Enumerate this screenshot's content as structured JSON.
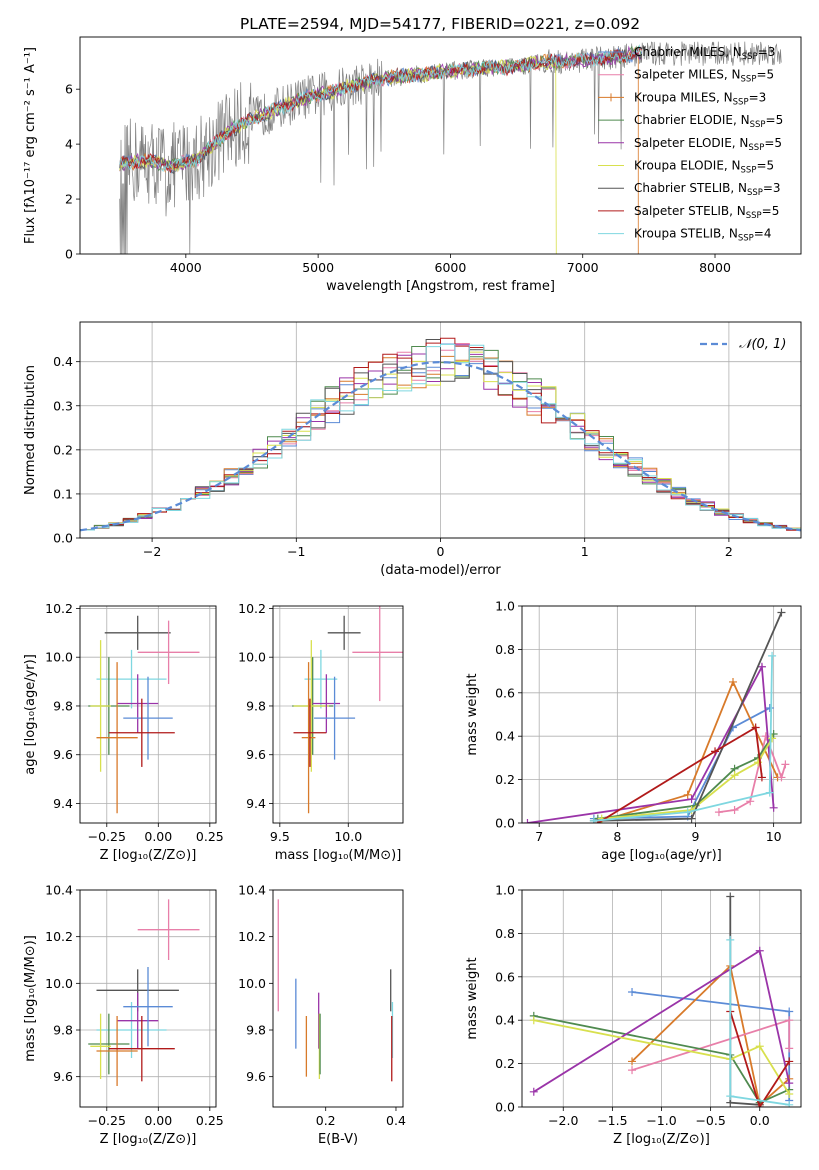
{
  "title": "PLATE=2594, MJD=54177, FIBERID=0221, z=0.092",
  "colors": {
    "chabrier_miles": "#5b8bd6",
    "salpeter_miles": "#e87fa9",
    "kroupa_miles": "#d87a2a",
    "chabrier_elodie": "#4f8a4f",
    "salpeter_elodie": "#9a34a8",
    "kroupa_elodie": "#d8e04e",
    "chabrier_stelib": "#555555",
    "salpeter_stelib": "#b11a1a",
    "kroupa_stelib": "#7fd7e0",
    "raw_spectrum": "#808080",
    "gaussian": "#5b8bd6",
    "grid": "#b0b0b0"
  },
  "chart_data": [
    {
      "id": "spectrum",
      "type": "line",
      "xlabel": "wavelength [Angstrom, rest frame]",
      "ylabel": "Flux [fλ10⁻¹⁷ erg cm⁻² s⁻¹ A⁻¹]",
      "xlim": [
        3200,
        8650
      ],
      "ylim": [
        0,
        7.9
      ],
      "xticks": [
        4000,
        5000,
        6000,
        7000,
        8000
      ],
      "yticks": [
        0,
        2,
        4,
        6
      ],
      "grid": false,
      "legend_loc": "top-right",
      "data_x": [
        3500,
        3700,
        3900,
        4100,
        4300,
        4500,
        4700,
        4900,
        5100,
        5300,
        5500,
        5700,
        5900,
        6100,
        6300,
        6500,
        6700,
        6900,
        7100,
        7300,
        7420
      ],
      "data_y": [
        3.3,
        3.4,
        3.2,
        3.5,
        4.4,
        4.9,
        5.3,
        5.7,
        5.9,
        6.2,
        6.4,
        6.5,
        6.6,
        6.7,
        6.8,
        6.8,
        7.0,
        7.0,
        7.1,
        7.2,
        7.3
      ],
      "series": [
        {
          "name": "Chabrier MILES, N_SSP=3",
          "label": "Chabrier MILES, N",
          "sub": "SSP",
          "suffix": "=3",
          "color_key": "chabrier_miles"
        },
        {
          "name": "Salpeter MILES, N_SSP=5",
          "label": "Salpeter MILES, N",
          "sub": "SSP",
          "suffix": "=5",
          "color_key": "salpeter_miles"
        },
        {
          "name": "Kroupa MILES, N_SSP=3",
          "label": "Kroupa MILES, N",
          "sub": "SSP",
          "suffix": "=3",
          "color_key": "kroupa_miles"
        },
        {
          "name": "Chabrier ELODIE, N_SSP=5",
          "label": "Chabrier ELODIE, N",
          "sub": "SSP",
          "suffix": "=5",
          "color_key": "chabrier_elodie"
        },
        {
          "name": "Salpeter ELODIE, N_SSP=5",
          "label": "Salpeter ELODIE, N",
          "sub": "SSP",
          "suffix": "=5",
          "color_key": "salpeter_elodie"
        },
        {
          "name": "Kroupa ELODIE, N_SSP=5",
          "label": "Kroupa ELODIE, N",
          "sub": "SSP",
          "suffix": "=5",
          "color_key": "kroupa_elodie"
        },
        {
          "name": "Chabrier STELIB, N_SSP=3",
          "label": "Chabrier STELIB, N",
          "sub": "SSP",
          "suffix": "=3",
          "color_key": "chabrier_stelib"
        },
        {
          "name": "Salpeter STELIB, N_SSP=5",
          "label": "Salpeter STELIB, N",
          "sub": "SSP",
          "suffix": "=5",
          "color_key": "salpeter_stelib"
        },
        {
          "name": "Kroupa STELIB, N_SSP=4",
          "label": "Kroupa STELIB, N",
          "sub": "SSP",
          "suffix": "=4",
          "color_key": "kroupa_stelib"
        }
      ]
    },
    {
      "id": "residuals",
      "type": "histogram",
      "xlabel": "(data-model)/error",
      "ylabel": "Normed distribution",
      "xlim": [
        -2.5,
        2.5
      ],
      "ylim": [
        0,
        0.49
      ],
      "xticks": [
        -2,
        -1,
        0,
        1,
        2
      ],
      "xtick_labels": [
        "−2",
        "−1",
        "0",
        "1",
        "2"
      ],
      "yticks": [
        0,
        0.1,
        0.2,
        0.3,
        0.4
      ],
      "ytick_labels": [
        "0.0",
        "0.1",
        "0.2",
        "0.3",
        "0.4"
      ],
      "grid": true,
      "legend_loc": "top-right",
      "gaussian_label": "𝒩(0, 1)",
      "bin_width": 0.1
    },
    {
      "id": "age_vs_Z",
      "type": "scatter",
      "xlabel": "Z [log₁₀(Z/Z⊙)]",
      "ylabel": "age  [log₁₀(age/yr)]",
      "xlim": [
        -0.38,
        0.28
      ],
      "ylim": [
        9.32,
        10.21
      ],
      "xticks": [
        -0.25,
        0.0,
        0.25
      ],
      "xtick_labels": [
        "−0.25",
        "0.00",
        "0.25"
      ],
      "yticks": [
        9.4,
        9.6,
        9.8,
        10.0,
        10.2
      ],
      "ytick_labels": [
        "9.4",
        "9.6",
        "9.8",
        "10.0",
        "10.2"
      ],
      "grid": true,
      "points": [
        {
          "color_key": "chabrier_stelib",
          "x": -0.1,
          "y": 10.1,
          "xerr": 0.16,
          "yerr": 0.07
        },
        {
          "color_key": "salpeter_miles",
          "x": 0.05,
          "y": 10.02,
          "xerr": 0.15,
          "yerr": 0.13
        },
        {
          "color_key": "kroupa_stelib",
          "x": -0.13,
          "y": 9.91,
          "xerr": 0.17,
          "yerr": 0.12
        },
        {
          "color_key": "chabrier_elodie",
          "x": -0.24,
          "y": 9.8,
          "xerr": 0.1,
          "yerr": 0.2
        },
        {
          "color_key": "kroupa_elodie",
          "x": -0.28,
          "y": 9.8,
          "xerr": 0.05,
          "yerr": 0.27
        },
        {
          "color_key": "salpeter_elodie",
          "x": -0.1,
          "y": 9.81,
          "xerr": 0.1,
          "yerr": 0.12
        },
        {
          "color_key": "chabrier_miles",
          "x": -0.05,
          "y": 9.75,
          "xerr": 0.12,
          "yerr": 0.17
        },
        {
          "color_key": "kroupa_miles",
          "x": -0.2,
          "y": 9.67,
          "xerr": 0.1,
          "yerr": 0.31
        },
        {
          "color_key": "salpeter_stelib",
          "x": -0.08,
          "y": 9.69,
          "xerr": 0.16,
          "yerr": 0.14
        }
      ]
    },
    {
      "id": "age_vs_mass",
      "type": "scatter",
      "xlabel": "mass [log₁₀(M/M⊙)]",
      "ylabel": "",
      "xlim": [
        9.45,
        10.4
      ],
      "ylim": [
        9.32,
        10.21
      ],
      "xticks": [
        9.5,
        10.0
      ],
      "xtick_labels": [
        "9.5",
        "10.0"
      ],
      "yticks": [
        9.4,
        9.6,
        9.8,
        10.0,
        10.2
      ],
      "ytick_labels": [
        "9.4",
        "9.6",
        "9.8",
        "10.0",
        "10.2"
      ],
      "grid": true,
      "points": [
        {
          "color_key": "chabrier_stelib",
          "x": 9.97,
          "y": 10.1,
          "xerr": 0.12,
          "yerr": 0.07
        },
        {
          "color_key": "salpeter_miles",
          "x": 10.23,
          "y": 10.02,
          "xerr": 0.2,
          "yerr": 0.2
        },
        {
          "color_key": "kroupa_stelib",
          "x": 9.8,
          "y": 9.91,
          "xerr": 0.12,
          "yerr": 0.12
        },
        {
          "color_key": "chabrier_elodie",
          "x": 9.74,
          "y": 9.8,
          "xerr": 0.15,
          "yerr": 0.2
        },
        {
          "color_key": "kroupa_elodie",
          "x": 9.73,
          "y": 9.8,
          "xerr": 0.13,
          "yerr": 0.27
        },
        {
          "color_key": "salpeter_elodie",
          "x": 9.84,
          "y": 9.81,
          "xerr": 0.1,
          "yerr": 0.12
        },
        {
          "color_key": "chabrier_miles",
          "x": 9.9,
          "y": 9.75,
          "xerr": 0.15,
          "yerr": 0.17
        },
        {
          "color_key": "kroupa_miles",
          "x": 9.71,
          "y": 9.67,
          "xerr": 0.05,
          "yerr": 0.31
        },
        {
          "color_key": "salpeter_stelib",
          "x": 9.72,
          "y": 9.69,
          "xerr": 0.12,
          "yerr": 0.14
        }
      ]
    },
    {
      "id": "weight_vs_age",
      "type": "line",
      "xlabel": "age  [log₁₀(age/yr)]",
      "ylabel": "mass weight",
      "xlim": [
        6.78,
        10.35
      ],
      "ylim": [
        0,
        1.0
      ],
      "xticks": [
        7,
        8,
        9,
        10
      ],
      "xtick_labels": [
        "7",
        "8",
        "9",
        "10"
      ],
      "yticks": [
        0,
        0.2,
        0.4,
        0.6,
        0.8,
        1.0
      ],
      "ytick_labels": [
        "0.0",
        "0.2",
        "0.4",
        "0.6",
        "0.8",
        "1.0"
      ],
      "grid": true,
      "series": [
        {
          "color_key": "chabrier_miles",
          "x": [
            7.7,
            8.9,
            9.48,
            9.95
          ],
          "y": [
            0.02,
            0.03,
            0.44,
            0.53
          ]
        },
        {
          "color_key": "kroupa_miles",
          "x": [
            7.8,
            8.9,
            9.48,
            10.05
          ],
          "y": [
            0.01,
            0.13,
            0.65,
            0.21
          ]
        },
        {
          "color_key": "salpeter_miles",
          "x": [
            9.3,
            9.5,
            9.7,
            9.9,
            10.1,
            10.15
          ],
          "y": [
            0.05,
            0.06,
            0.1,
            0.4,
            0.21,
            0.27
          ]
        },
        {
          "color_key": "chabrier_elodie",
          "x": [
            7.75,
            9.0,
            9.5,
            9.8,
            10.0
          ],
          "y": [
            0.02,
            0.08,
            0.25,
            0.3,
            0.41
          ]
        },
        {
          "color_key": "salpeter_elodie",
          "x": [
            6.85,
            8.95,
            9.85,
            10.0
          ],
          "y": [
            0.0,
            0.11,
            0.72,
            0.07
          ]
        },
        {
          "color_key": "kroupa_elodie",
          "x": [
            7.8,
            8.95,
            9.5,
            9.8,
            9.98
          ],
          "y": [
            0.02,
            0.06,
            0.22,
            0.28,
            0.39
          ]
        },
        {
          "color_key": "chabrier_stelib",
          "x": [
            7.7,
            8.95,
            10.1
          ],
          "y": [
            0.01,
            0.02,
            0.97
          ]
        },
        {
          "color_key": "salpeter_stelib",
          "x": [
            7.75,
            9.25,
            9.77,
            9.85
          ],
          "y": [
            0.0,
            0.33,
            0.44,
            0.21
          ]
        },
        {
          "color_key": "kroupa_stelib",
          "x": [
            7.7,
            8.9,
            9.95,
            9.98
          ],
          "y": [
            0.01,
            0.05,
            0.14,
            0.77
          ]
        }
      ]
    },
    {
      "id": "mass_vs_Z",
      "type": "scatter",
      "xlabel": "Z [log₁₀(Z/Z⊙)]",
      "ylabel": "mass [log₁₀(M/M⊙)]",
      "xlim": [
        -0.38,
        0.28
      ],
      "ylim": [
        9.47,
        10.4
      ],
      "xticks": [
        -0.25,
        0.0,
        0.25
      ],
      "xtick_labels": [
        "−0.25",
        "0.00",
        "0.25"
      ],
      "yticks": [
        9.6,
        9.8,
        10.0,
        10.2,
        10.4
      ],
      "ytick_labels": [
        "9.6",
        "9.8",
        "10.0",
        "10.2",
        "10.4"
      ],
      "grid": true,
      "points": [
        {
          "color_key": "chabrier_stelib",
          "x": -0.1,
          "y": 9.97,
          "xerr": 0.2,
          "yerr": 0.09
        },
        {
          "color_key": "salpeter_miles",
          "x": 0.05,
          "y": 10.23,
          "xerr": 0.15,
          "yerr": 0.13
        },
        {
          "color_key": "kroupa_stelib",
          "x": -0.13,
          "y": 9.8,
          "xerr": 0.17,
          "yerr": 0.12
        },
        {
          "color_key": "chabrier_elodie",
          "x": -0.24,
          "y": 9.74,
          "xerr": 0.1,
          "yerr": 0.13
        },
        {
          "color_key": "kroupa_elodie",
          "x": -0.28,
          "y": 9.73,
          "xerr": 0.05,
          "yerr": 0.14
        },
        {
          "color_key": "salpeter_elodie",
          "x": -0.1,
          "y": 9.84,
          "xerr": 0.1,
          "yerr": 0.12
        },
        {
          "color_key": "chabrier_miles",
          "x": -0.05,
          "y": 9.9,
          "xerr": 0.12,
          "yerr": 0.17
        },
        {
          "color_key": "kroupa_miles",
          "x": -0.2,
          "y": 9.71,
          "xerr": 0.1,
          "yerr": 0.15
        },
        {
          "color_key": "salpeter_stelib",
          "x": -0.08,
          "y": 9.72,
          "xerr": 0.16,
          "yerr": 0.14
        }
      ]
    },
    {
      "id": "mass_vs_ebv",
      "type": "scatter",
      "xlabel": "E(B-V)",
      "ylabel": "",
      "xlim": [
        0.05,
        0.42
      ],
      "ylim": [
        9.47,
        10.4
      ],
      "xticks": [
        0.2,
        0.4
      ],
      "xtick_labels": [
        "0.2",
        "0.4"
      ],
      "yticks": [
        9.6,
        9.8,
        10.0,
        10.2,
        10.4
      ],
      "ytick_labels": [
        "9.6",
        "9.8",
        "10.0",
        "10.2",
        "10.4"
      ],
      "grid": false,
      "points": [
        {
          "color_key": "salpeter_miles",
          "x": 0.065,
          "y": 10.12,
          "yerr": 0.24
        },
        {
          "color_key": "chabrier_miles",
          "x": 0.115,
          "y": 9.87,
          "yerr": 0.15
        },
        {
          "color_key": "kroupa_miles",
          "x": 0.145,
          "y": 9.73,
          "yerr": 0.13
        },
        {
          "color_key": "salpeter_elodie",
          "x": 0.18,
          "y": 9.84,
          "yerr": 0.12
        },
        {
          "color_key": "kroupa_elodie",
          "x": 0.182,
          "y": 9.73,
          "yerr": 0.14
        },
        {
          "color_key": "chabrier_elodie",
          "x": 0.184,
          "y": 9.74,
          "yerr": 0.13
        },
        {
          "color_key": "kroupa_stelib",
          "x": 0.39,
          "y": 9.8,
          "yerr": 0.12
        },
        {
          "color_key": "chabrier_stelib",
          "x": 0.385,
          "y": 9.97,
          "yerr": 0.09
        },
        {
          "color_key": "salpeter_stelib",
          "x": 0.388,
          "y": 9.72,
          "yerr": 0.14
        }
      ]
    },
    {
      "id": "weight_vs_Z",
      "type": "line",
      "xlabel": "Z [log₁₀(Z/Z⊙)]",
      "ylabel": "mass weight",
      "xlim": [
        -2.42,
        0.42
      ],
      "ylim": [
        0,
        1.0
      ],
      "xticks": [
        -2.0,
        -1.5,
        -1.0,
        -0.5,
        0.0
      ],
      "xtick_labels": [
        "−2.0",
        "−1.5",
        "−1.0",
        "−0.5",
        "0.0"
      ],
      "yticks": [
        0,
        0.2,
        0.4,
        0.6,
        0.8,
        1.0
      ],
      "ytick_labels": [
        "0.0",
        "0.2",
        "0.4",
        "0.6",
        "0.8",
        "1.0"
      ],
      "grid": true,
      "series": [
        {
          "color_key": "chabrier_miles",
          "x": [
            -1.3,
            0.3,
            0.3
          ],
          "y": [
            0.53,
            0.44,
            0.03
          ]
        },
        {
          "color_key": "kroupa_miles",
          "x": [
            -1.3,
            -0.3,
            0.0,
            0.3
          ],
          "y": [
            0.21,
            0.65,
            0.01,
            0.13
          ]
        },
        {
          "color_key": "salpeter_miles",
          "x": [
            -1.3,
            0.3,
            0.3
          ],
          "y": [
            0.17,
            0.4,
            0.27
          ]
        },
        {
          "color_key": "chabrier_elodie",
          "x": [
            -2.3,
            -0.3,
            0.0,
            0.3
          ],
          "y": [
            0.42,
            0.24,
            0.02,
            0.08
          ]
        },
        {
          "color_key": "salpeter_elodie",
          "x": [
            -2.3,
            0.0,
            0.3
          ],
          "y": [
            0.07,
            0.72,
            0.11
          ]
        },
        {
          "color_key": "kroupa_elodie",
          "x": [
            -2.3,
            -0.3,
            0.0,
            0.3
          ],
          "y": [
            0.4,
            0.22,
            0.28,
            0.06
          ]
        },
        {
          "color_key": "chabrier_stelib",
          "x": [
            -0.3,
            -0.3,
            0.0
          ],
          "y": [
            0.97,
            0.02,
            0.01
          ]
        },
        {
          "color_key": "salpeter_stelib",
          "x": [
            -0.3,
            0.0,
            0.3
          ],
          "y": [
            0.44,
            0.0,
            0.21
          ]
        },
        {
          "color_key": "kroupa_stelib",
          "x": [
            -0.3,
            -0.3,
            0.3
          ],
          "y": [
            0.77,
            0.05,
            0.01
          ]
        }
      ]
    }
  ]
}
